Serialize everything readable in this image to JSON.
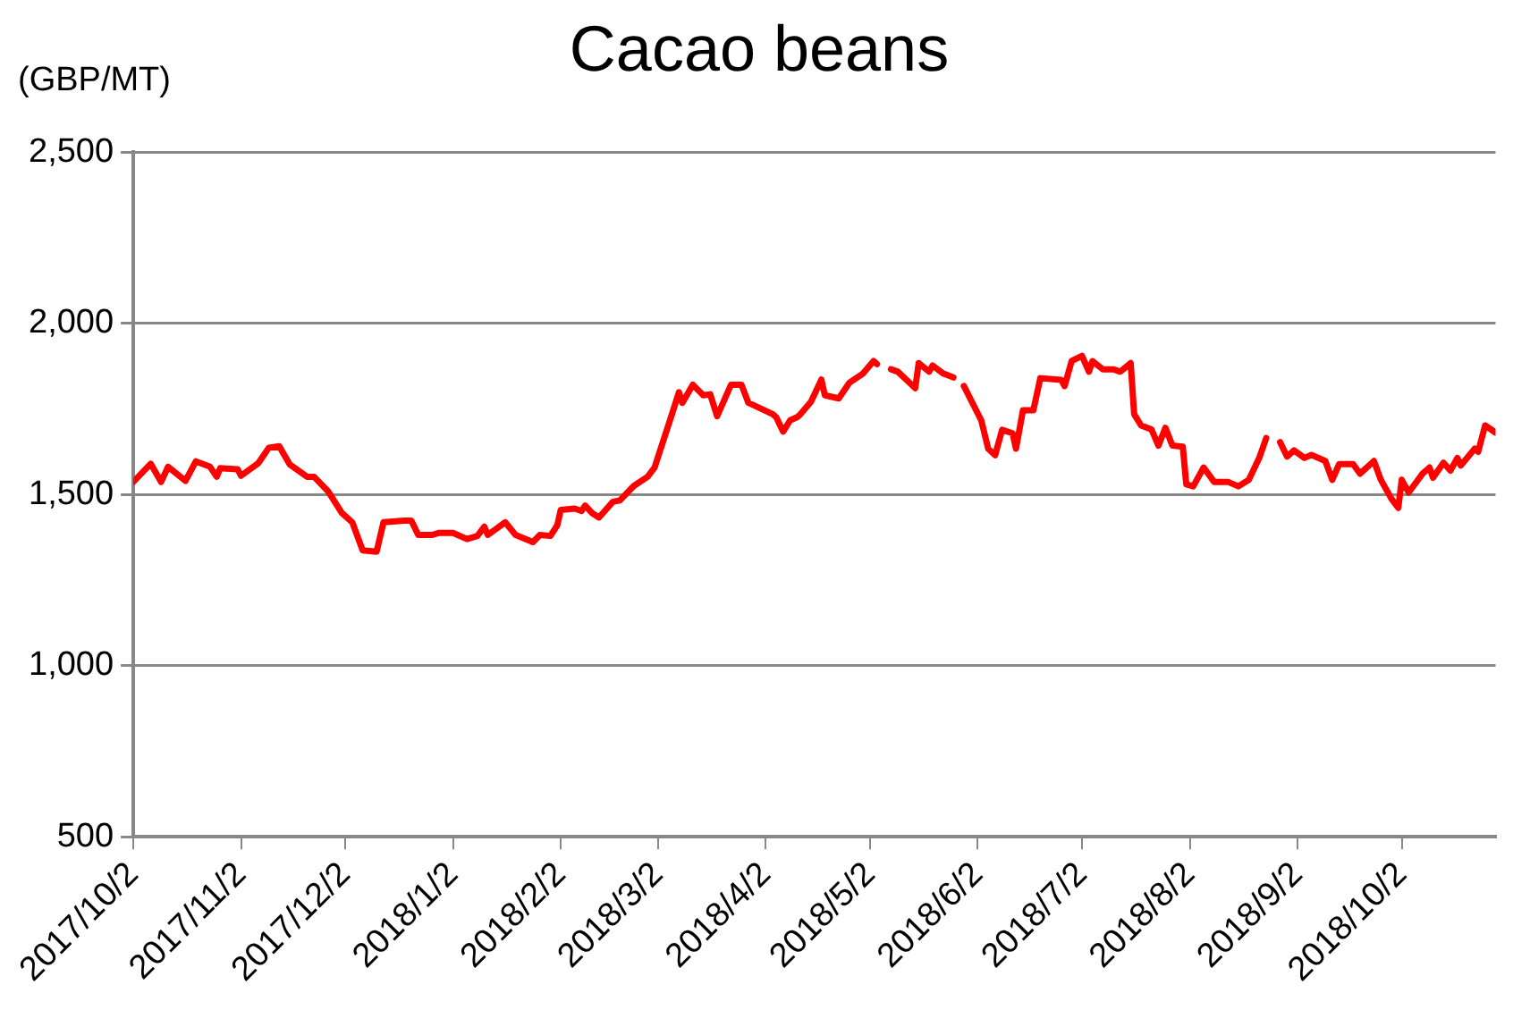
{
  "chart_data": {
    "type": "line",
    "title": "Cacao beans",
    "ylabel": "(GBP/MT)",
    "x": [
      "2017-10-02",
      "2017-10-07",
      "2017-10-10",
      "2017-10-12",
      "2017-10-17",
      "2017-10-20",
      "2017-10-24",
      "2017-10-26",
      "2017-10-27",
      "2017-11-01",
      "2017-11-02",
      "2017-11-07",
      "2017-11-10",
      "2017-11-13",
      "2017-11-16",
      "2017-11-21",
      "2017-11-23",
      "2017-11-27",
      "2017-12-01",
      "2017-12-04",
      "2017-12-07",
      "2017-12-11",
      "2017-12-13",
      "2017-12-19",
      "2017-12-21",
      "2017-12-23",
      "2017-12-27",
      "2017-12-29",
      "2018-01-02",
      "2018-01-06",
      "2018-01-09",
      "2018-01-11",
      "2018-01-12",
      "2018-01-17",
      "2018-01-20",
      "2018-01-25",
      "2018-01-27",
      "2018-01-30",
      "2018-02-01",
      "2018-02-02",
      "2018-02-06",
      "2018-02-08",
      "2018-02-09",
      "2018-02-11",
      "2018-02-13",
      "2018-02-17",
      "2018-02-19",
      "2018-02-23",
      "2018-02-27",
      "2018-03-01",
      "2018-03-06",
      "2018-03-08",
      "2018-03-09",
      "2018-03-12",
      "2018-03-15",
      "2018-03-17",
      "2018-03-19",
      "2018-03-23",
      "2018-03-26",
      "2018-03-28",
      "2018-04-04",
      "2018-04-05",
      "2018-04-07",
      "2018-04-09",
      "2018-04-11",
      "2018-04-12",
      "2018-04-15",
      "2018-04-18",
      "2018-04-19",
      "2018-04-23",
      "2018-04-26",
      "2018-04-30",
      "2018-05-03",
      "2018-05-04",
      "2018-05-06",
      "2018-05-08",
      "2018-05-10",
      "2018-05-15",
      "2018-05-16",
      "2018-05-19",
      "2018-05-20",
      "2018-05-23",
      "2018-05-26",
      "2018-05-28",
      "2018-05-29",
      "2018-06-03",
      "2018-06-05",
      "2018-06-07",
      "2018-06-09",
      "2018-06-12",
      "2018-06-13",
      "2018-06-15",
      "2018-06-18",
      "2018-06-20",
      "2018-06-26",
      "2018-06-27",
      "2018-06-29",
      "2018-07-02",
      "2018-07-04",
      "2018-07-05",
      "2018-07-08",
      "2018-07-11",
      "2018-07-13",
      "2018-07-16",
      "2018-07-17",
      "2018-07-19",
      "2018-07-22",
      "2018-07-24",
      "2018-07-26",
      "2018-07-28",
      "2018-07-31",
      "2018-08-01",
      "2018-08-03",
      "2018-08-06",
      "2018-08-09",
      "2018-08-13",
      "2018-08-16",
      "2018-08-19",
      "2018-08-22",
      "2018-08-24",
      "2018-08-26",
      "2018-08-28",
      "2018-08-30",
      "2018-09-01",
      "2018-09-04",
      "2018-09-06",
      "2018-09-10",
      "2018-09-12",
      "2018-09-14",
      "2018-09-18",
      "2018-09-20",
      "2018-09-24",
      "2018-09-26",
      "2018-09-29",
      "2018-10-01",
      "2018-10-02",
      "2018-10-04",
      "2018-10-08",
      "2018-10-10",
      "2018-10-11",
      "2018-10-14",
      "2018-10-16",
      "2018-10-18",
      "2018-10-19",
      "2018-10-23",
      "2018-10-24",
      "2018-10-26",
      "2018-10-29"
    ],
    "series": [
      {
        "color": "#ff0000",
        "values": [
          1537,
          1590,
          1537,
          1581,
          1540,
          1597,
          1582,
          1552,
          1577,
          1574,
          1555,
          1592,
          1637,
          1641,
          1588,
          1552,
          1552,
          1510,
          1446,
          1419,
          1337,
          1333,
          1419,
          1424,
          1424,
          1382,
          1382,
          1388,
          1388,
          1370,
          1379,
          1406,
          1382,
          1419,
          1382,
          1361,
          1382,
          1379,
          1410,
          1455,
          1459,
          1452,
          1468,
          1446,
          1433,
          1479,
          1483,
          1525,
          1552,
          1579,
          1735,
          1799,
          1768,
          1821,
          1790,
          1793,
          1729,
          1821,
          1821,
          1768,
          1735,
          1726,
          1684,
          1717,
          1726,
          1735,
          1771,
          1836,
          1790,
          1781,
          1826,
          1854,
          1890,
          1881,
          null,
          1866,
          1859,
          1811,
          1884,
          1859,
          1877,
          1854,
          1842,
          null,
          1817,
          1717,
          1634,
          1615,
          1689,
          1679,
          1634,
          1746,
          1746,
          1840,
          1835,
          1817,
          1890,
          1905,
          1859,
          1890,
          1866,
          1866,
          1859,
          1884,
          1735,
          1702,
          1690,
          1643,
          1695,
          1643,
          1640,
          1530,
          1524,
          1579,
          1537,
          1537,
          1524,
          1543,
          1607,
          1665,
          null,
          1653,
          1611,
          1629,
          1607,
          1616,
          1598,
          1543,
          1589,
          1589,
          1561,
          1598,
          1543,
          1488,
          1461,
          1543,
          1506,
          1561,
          1579,
          1549,
          1593,
          1570,
          1607,
          1585,
          1634,
          1625,
          1702,
          1681
        ]
      }
    ],
    "xlim": [
      "2017-10-02",
      "2018-10-29"
    ],
    "xticks": [
      {
        "value": "2017-10-02",
        "label": "2017/10/2"
      },
      {
        "value": "2017-11-02",
        "label": "2017/11/2"
      },
      {
        "value": "2017-12-02",
        "label": "2017/12/2"
      },
      {
        "value": "2018-01-02",
        "label": "2018/1/2"
      },
      {
        "value": "2018-02-02",
        "label": "2018/2/2"
      },
      {
        "value": "2018-03-02",
        "label": "2018/3/2"
      },
      {
        "value": "2018-04-02",
        "label": "2018/4/2"
      },
      {
        "value": "2018-05-02",
        "label": "2018/5/2"
      },
      {
        "value": "2018-06-02",
        "label": "2018/6/2"
      },
      {
        "value": "2018-07-02",
        "label": "2018/7/2"
      },
      {
        "value": "2018-08-02",
        "label": "2018/8/2"
      },
      {
        "value": "2018-09-02",
        "label": "2018/9/2"
      },
      {
        "value": "2018-10-02",
        "label": "2018/10/2"
      }
    ],
    "ylim": [
      500,
      2500
    ],
    "yticks": [
      500,
      {
        "value": 1000,
        "label": "1,000"
      },
      {
        "value": 1500,
        "label": "1,500"
      },
      {
        "value": 2000,
        "label": "2,000"
      },
      {
        "value": 2500,
        "label": "2,500"
      }
    ],
    "grid": "y",
    "line_style": "solid",
    "marker": "none",
    "legend": false
  }
}
